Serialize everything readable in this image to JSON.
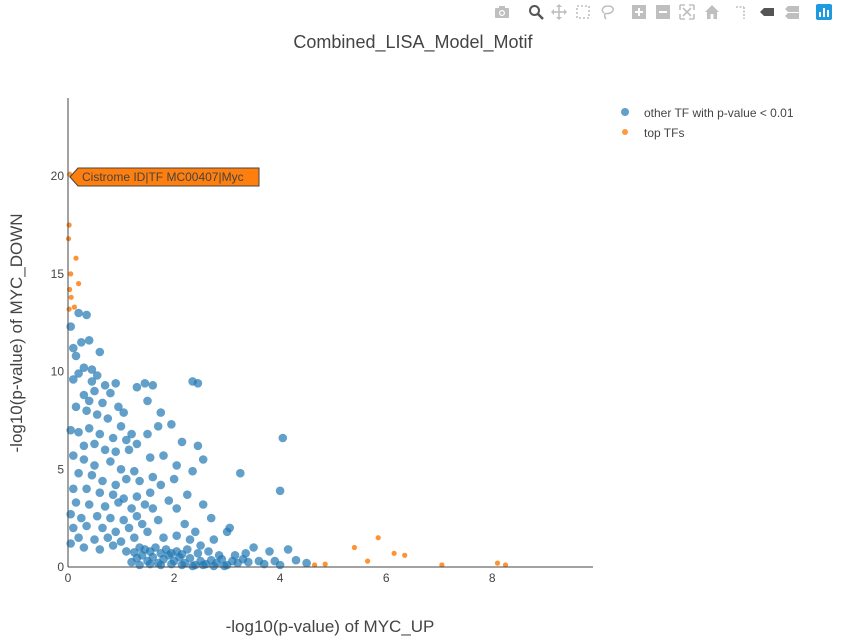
{
  "colors": {
    "other": "#1f77b4",
    "top": "#ff7f0e",
    "axis": "#444444",
    "text": "#444444",
    "modebar_icon": "#bfbfbf",
    "modebar_active": "#1f9ae0"
  },
  "modebar": [
    {
      "icon": "camera-icon",
      "name": "download-plot-button"
    },
    {
      "icon": "zoom-icon",
      "name": "zoom-button"
    },
    {
      "icon": "pan-icon",
      "name": "pan-button"
    },
    {
      "icon": "box-select-icon",
      "name": "box-select-button"
    },
    {
      "icon": "lasso-select-icon",
      "name": "lasso-select-button"
    },
    {
      "icon": "zoom-in-icon",
      "name": "zoom-in-button"
    },
    {
      "icon": "zoom-out-icon",
      "name": "zoom-out-button"
    },
    {
      "icon": "autoscale-icon",
      "name": "autoscale-button"
    },
    {
      "icon": "home-icon",
      "name": "reset-axes-button"
    },
    {
      "icon": "spike-lines-icon",
      "name": "spike-lines-button"
    },
    {
      "icon": "hover-closest-icon",
      "name": "hover-closest-button"
    },
    {
      "icon": "hover-compare-icon",
      "name": "hover-compare-button"
    },
    {
      "icon": "plotly-logo-icon",
      "name": "plotly-logo-link"
    }
  ],
  "chart_data": {
    "type": "scatter",
    "title": "Combined_LISA_Model_Motif",
    "xlabel": "-log10(p-value) of MYC_UP",
    "ylabel": "-log10(p-value) of MYC_DOWN",
    "xlim": [
      0,
      9.9
    ],
    "ylim": [
      0,
      24
    ],
    "xticks": [
      0,
      2,
      4,
      6,
      8
    ],
    "yticks": [
      0,
      5,
      10,
      15,
      20
    ],
    "grid": false,
    "legend_position": "top-right",
    "annotation": {
      "text": "Cistrome ID|TF MC00407|Myc",
      "x": 0.03,
      "y": 20.1
    },
    "series": [
      {
        "name": "other TF with p-value < 0.01",
        "points": [
          [
            0.05,
            12.3
          ],
          [
            0.1,
            11.2
          ],
          [
            0.15,
            10.8
          ],
          [
            0.2,
            13.0
          ],
          [
            0.35,
            12.9
          ],
          [
            0.1,
            9.6
          ],
          [
            0.2,
            9.9
          ],
          [
            0.3,
            10.2
          ],
          [
            0.45,
            10.1
          ],
          [
            0.55,
            9.8
          ],
          [
            0.25,
            11.5
          ],
          [
            0.4,
            11.6
          ],
          [
            0.6,
            11.0
          ],
          [
            0.45,
            9.5
          ],
          [
            0.5,
            9.0
          ],
          [
            0.3,
            8.8
          ],
          [
            0.7,
            9.3
          ],
          [
            0.8,
            8.9
          ],
          [
            0.9,
            9.4
          ],
          [
            0.4,
            8.5
          ],
          [
            0.65,
            8.4
          ],
          [
            0.35,
            8.0
          ],
          [
            0.55,
            7.8
          ],
          [
            0.75,
            7.6
          ],
          [
            0.95,
            8.2
          ],
          [
            1.05,
            7.9
          ],
          [
            0.15,
            8.2
          ],
          [
            0.05,
            7.0
          ],
          [
            0.2,
            6.9
          ],
          [
            0.4,
            7.1
          ],
          [
            0.6,
            6.8
          ],
          [
            0.85,
            6.6
          ],
          [
            1.0,
            7.2
          ],
          [
            1.1,
            6.5
          ],
          [
            1.2,
            6.8
          ],
          [
            0.3,
            6.2
          ],
          [
            0.5,
            6.3
          ],
          [
            0.7,
            6.0
          ],
          [
            0.9,
            5.9
          ],
          [
            1.15,
            6.0
          ],
          [
            1.3,
            6.3
          ],
          [
            0.1,
            5.7
          ],
          [
            0.3,
            5.5
          ],
          [
            0.5,
            5.2
          ],
          [
            0.8,
            5.4
          ],
          [
            1.0,
            5.0
          ],
          [
            1.25,
            4.9
          ],
          [
            0.2,
            4.8
          ],
          [
            0.45,
            4.7
          ],
          [
            0.65,
            4.4
          ],
          [
            0.9,
            4.2
          ],
          [
            1.1,
            4.5
          ],
          [
            1.35,
            4.4
          ],
          [
            0.1,
            4.0
          ],
          [
            0.35,
            4.0
          ],
          [
            0.6,
            3.8
          ],
          [
            0.85,
            3.7
          ],
          [
            1.05,
            3.5
          ],
          [
            1.3,
            3.6
          ],
          [
            0.15,
            3.3
          ],
          [
            0.4,
            3.2
          ],
          [
            0.7,
            3.1
          ],
          [
            0.95,
            3.3
          ],
          [
            1.2,
            3.0
          ],
          [
            1.45,
            3.2
          ],
          [
            0.05,
            2.7
          ],
          [
            0.25,
            2.5
          ],
          [
            0.55,
            2.6
          ],
          [
            0.8,
            2.5
          ],
          [
            1.05,
            2.4
          ],
          [
            1.3,
            2.6
          ],
          [
            0.1,
            2.0
          ],
          [
            0.35,
            2.1
          ],
          [
            0.65,
            2.0
          ],
          [
            0.9,
            1.8
          ],
          [
            1.15,
            2.0
          ],
          [
            1.4,
            2.2
          ],
          [
            0.2,
            1.5
          ],
          [
            0.5,
            1.4
          ],
          [
            0.75,
            1.5
          ],
          [
            1.0,
            1.3
          ],
          [
            1.25,
            1.5
          ],
          [
            0.05,
            1.2
          ],
          [
            0.3,
            1.0
          ],
          [
            0.6,
            0.9
          ],
          [
            0.85,
            1.1
          ],
          [
            1.1,
            0.8
          ],
          [
            1.35,
            1.0
          ],
          [
            1.3,
            9.2
          ],
          [
            1.45,
            9.4
          ],
          [
            1.6,
            9.3
          ],
          [
            1.5,
            8.5
          ],
          [
            1.75,
            7.9
          ],
          [
            2.35,
            9.5
          ],
          [
            2.45,
            9.4
          ],
          [
            1.7,
            7.2
          ],
          [
            1.95,
            7.3
          ],
          [
            1.5,
            6.8
          ],
          [
            2.15,
            6.4
          ],
          [
            2.45,
            6.2
          ],
          [
            1.55,
            5.6
          ],
          [
            1.8,
            5.7
          ],
          [
            2.05,
            5.2
          ],
          [
            2.55,
            5.5
          ],
          [
            2.35,
            4.9
          ],
          [
            1.6,
            4.6
          ],
          [
            2.0,
            4.5
          ],
          [
            1.75,
            4.2
          ],
          [
            1.55,
            3.8
          ],
          [
            2.25,
            3.7
          ],
          [
            2.55,
            3.2
          ],
          [
            1.9,
            3.4
          ],
          [
            1.6,
            3.0
          ],
          [
            2.05,
            3.0
          ],
          [
            1.7,
            2.4
          ],
          [
            2.2,
            2.2
          ],
          [
            2.4,
            1.8
          ],
          [
            1.5,
            1.8
          ],
          [
            2.7,
            2.5
          ],
          [
            2.05,
            1.6
          ],
          [
            1.8,
            1.5
          ],
          [
            2.3,
            1.4
          ],
          [
            2.5,
            1.1
          ],
          [
            3.0,
            1.8
          ],
          [
            2.75,
            1.4
          ],
          [
            3.05,
            2.0
          ],
          [
            3.25,
            4.8
          ],
          [
            4.05,
            6.6
          ],
          [
            4.0,
            3.9
          ],
          [
            3.5,
            1.0
          ],
          [
            3.35,
            0.7
          ],
          [
            4.15,
            0.9
          ],
          [
            3.8,
            0.8
          ],
          [
            4.3,
            0.35
          ],
          [
            4.5,
            0.2
          ],
          [
            3.9,
            0.3
          ],
          [
            1.2,
            0.25
          ],
          [
            1.3,
            0.45
          ],
          [
            1.4,
            0.6
          ],
          [
            1.5,
            0.3
          ],
          [
            1.6,
            0.5
          ],
          [
            1.7,
            0.2
          ],
          [
            1.8,
            0.4
          ],
          [
            1.9,
            0.6
          ],
          [
            2.0,
            0.3
          ],
          [
            2.1,
            0.5
          ],
          [
            2.2,
            0.2
          ],
          [
            2.3,
            0.45
          ],
          [
            2.4,
            0.1
          ],
          [
            2.5,
            0.3
          ],
          [
            2.6,
            0.15
          ],
          [
            2.7,
            0.35
          ],
          [
            2.8,
            0.2
          ],
          [
            2.9,
            0.4
          ],
          [
            3.0,
            0.1
          ],
          [
            3.1,
            0.3
          ],
          [
            3.2,
            0.2
          ],
          [
            3.3,
            0.4
          ],
          [
            3.4,
            0.25
          ],
          [
            3.6,
            0.3
          ],
          [
            3.7,
            0.15
          ],
          [
            4.0,
            0.1
          ],
          [
            1.35,
            0.1
          ],
          [
            1.55,
            0.15
          ],
          [
            1.75,
            0.1
          ],
          [
            1.95,
            0.15
          ],
          [
            2.15,
            0.1
          ],
          [
            2.35,
            0.05
          ],
          [
            2.55,
            0.1
          ],
          [
            2.75,
            0.05
          ],
          [
            2.95,
            0.05
          ],
          [
            1.45,
            0.9
          ],
          [
            1.65,
            1.0
          ],
          [
            1.85,
            0.9
          ],
          [
            2.05,
            0.8
          ],
          [
            2.25,
            0.9
          ],
          [
            2.45,
            0.7
          ],
          [
            2.65,
            0.8
          ],
          [
            2.85,
            0.6
          ],
          [
            3.15,
            0.6
          ],
          [
            1.25,
            0.75
          ],
          [
            1.55,
            0.8
          ],
          [
            1.75,
            0.7
          ],
          [
            1.95,
            0.7
          ],
          [
            2.15,
            0.65
          ]
        ]
      },
      {
        "name": "top TFs",
        "points": [
          [
            0.03,
            20.1
          ],
          [
            0.02,
            17.5
          ],
          [
            0.01,
            16.8
          ],
          [
            0.15,
            15.8
          ],
          [
            0.05,
            15.0
          ],
          [
            0.2,
            14.5
          ],
          [
            0.03,
            14.2
          ],
          [
            0.06,
            13.8
          ],
          [
            0.12,
            13.3
          ],
          [
            0.02,
            13.2
          ],
          [
            5.4,
            1.0
          ],
          [
            5.85,
            1.5
          ],
          [
            6.15,
            0.7
          ],
          [
            6.35,
            0.6
          ],
          [
            5.65,
            0.3
          ],
          [
            4.65,
            0.1
          ],
          [
            4.85,
            0.15
          ],
          [
            8.1,
            0.2
          ],
          [
            8.25,
            0.1
          ],
          [
            7.05,
            0.1
          ]
        ]
      }
    ]
  }
}
